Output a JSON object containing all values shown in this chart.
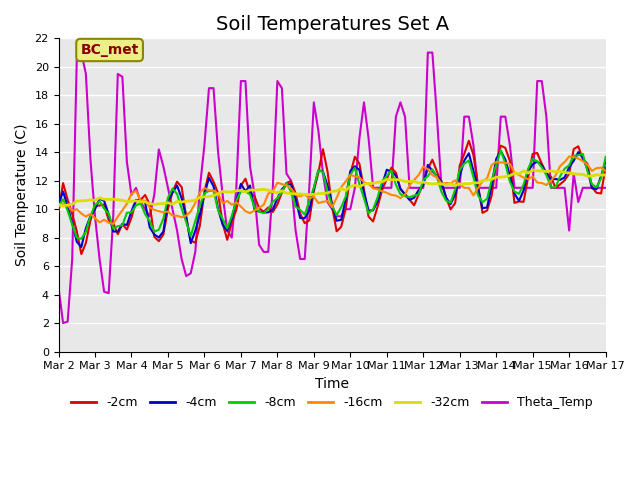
{
  "title": "Soil Temperatures Set A",
  "xlabel": "Time",
  "ylabel": "Soil Temperature (C)",
  "ylim": [
    0,
    22
  ],
  "yticks": [
    0,
    2,
    4,
    6,
    8,
    10,
    12,
    14,
    16,
    18,
    20,
    22
  ],
  "xtick_labels": [
    "Mar 2",
    "Mar 3",
    "Mar 4",
    "Mar 5",
    "Mar 6",
    "Mar 7",
    "Mar 8",
    "Mar 9",
    "Mar 10",
    "Mar 11",
    "Mar 12",
    "Mar 13",
    "Mar 14",
    "Mar 15",
    "Mar 16",
    "Mar 17"
  ],
  "colors": {
    "-2cm": "#dd0000",
    "-4cm": "#0000cc",
    "-8cm": "#00cc00",
    "-16cm": "#ff8800",
    "-32cm": "#dddd00",
    "Theta_Temp": "#cc00cc"
  },
  "linewidths": {
    "-2cm": 1.5,
    "-4cm": 1.5,
    "-8cm": 1.5,
    "-16cm": 1.5,
    "-32cm": 2.0,
    "Theta_Temp": 1.5
  },
  "annotation_text": "BC_met",
  "annotation_color": "#880000",
  "annotation_bg": "#eeee88",
  "background_color": "#e8e8e8",
  "title_fontsize": 14,
  "label_fontsize": 10,
  "tick_fontsize": 8
}
